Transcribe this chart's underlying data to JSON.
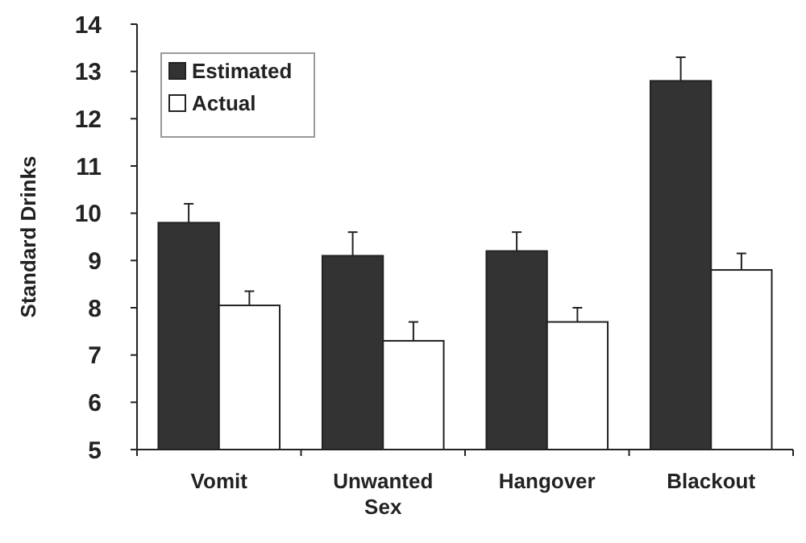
{
  "chart_data": {
    "type": "bar",
    "ylabel": "Standard Drinks",
    "categories": [
      "Vomit",
      "Unwanted Sex",
      "Hangover",
      "Blackout"
    ],
    "series": [
      {
        "name": "Estimated",
        "color": "#333333",
        "values": [
          9.8,
          9.1,
          9.2,
          12.8
        ],
        "errors": [
          0.4,
          0.5,
          0.4,
          0.5
        ]
      },
      {
        "name": "Actual",
        "color": "#ffffff",
        "values": [
          8.05,
          7.3,
          7.7,
          8.8
        ],
        "errors": [
          0.3,
          0.4,
          0.3,
          0.35
        ]
      }
    ],
    "ylim": [
      5,
      14
    ],
    "yticks": [
      5,
      6,
      7,
      8,
      9,
      10,
      11,
      12,
      13,
      14
    ],
    "grid": false,
    "legend": "top left"
  }
}
